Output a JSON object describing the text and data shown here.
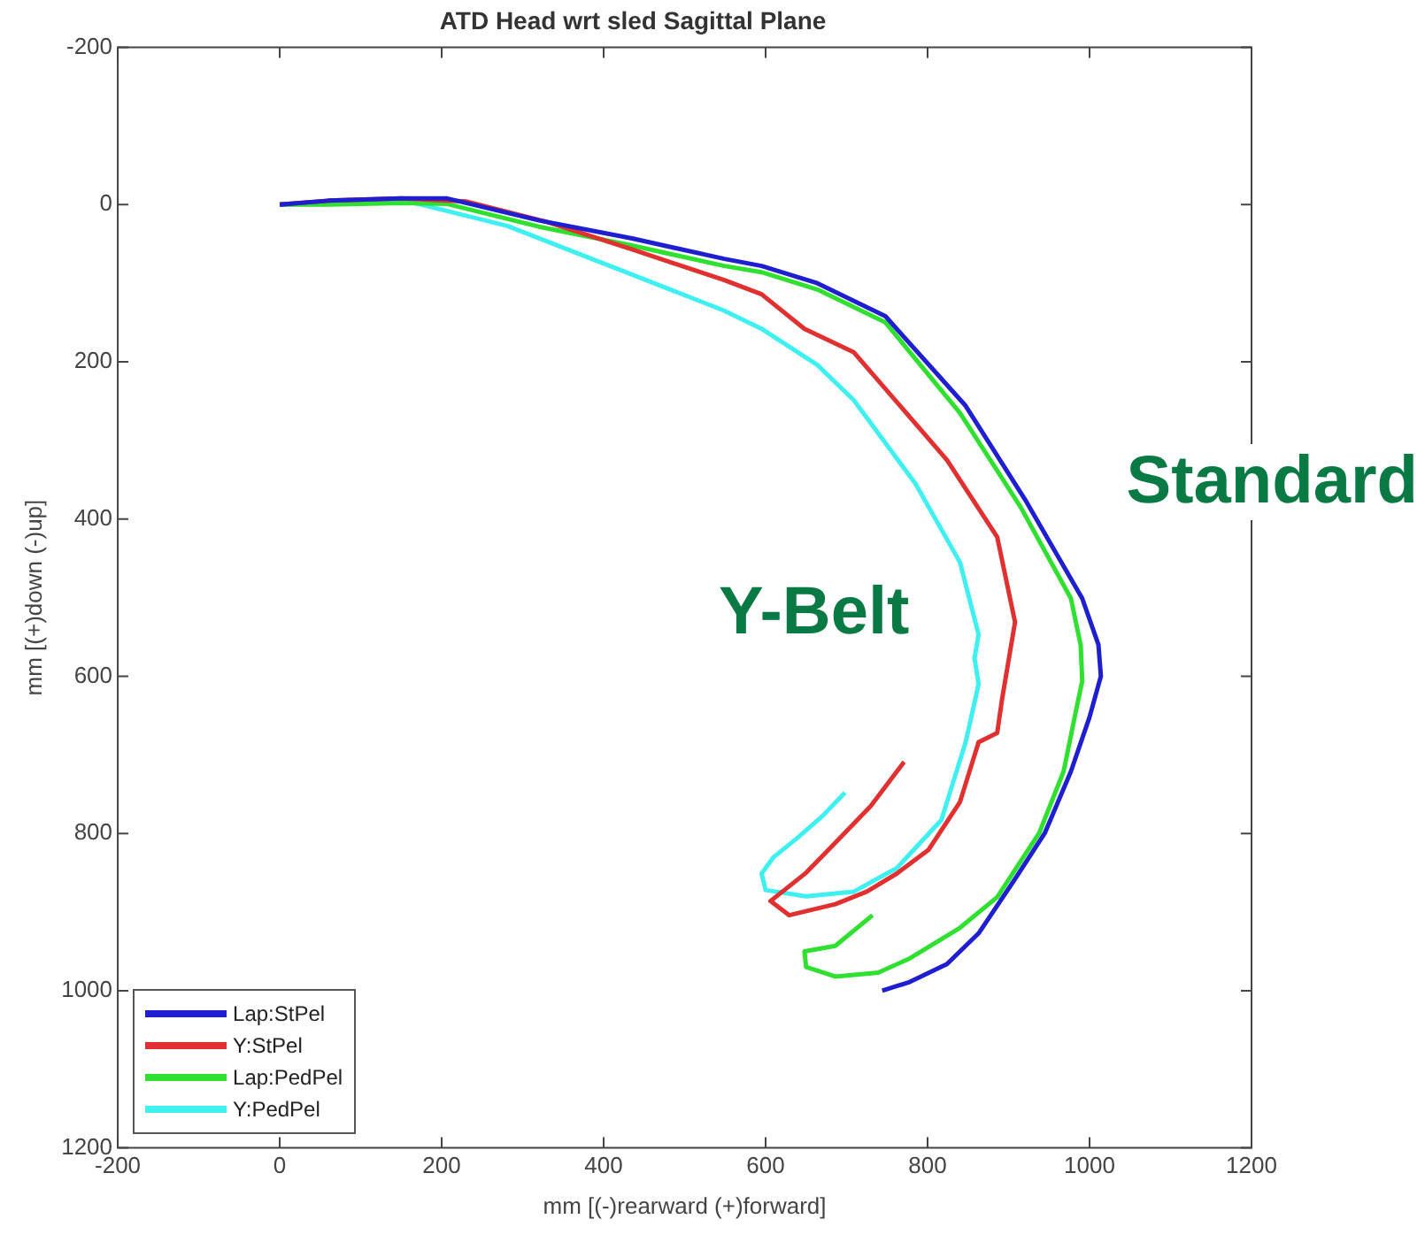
{
  "chart_data": {
    "type": "line",
    "title": "ATD Head wrt sled Sagittal Plane",
    "xlabel": "mm [(-)rearward (+)forward]",
    "ylabel": "mm [(+)down (-)up]",
    "xlim": [
      -200,
      1200
    ],
    "xticks": [
      -200,
      0,
      200,
      400,
      600,
      800,
      1000,
      1200
    ],
    "ylim": [
      1200,
      -200
    ],
    "yticks": [
      -200,
      0,
      200,
      400,
      600,
      800,
      1000,
      1200
    ],
    "grid": false,
    "legend": "bottom left",
    "marker": "none",
    "line_style": "solid",
    "annotations": [
      "Standard",
      "Y-Belt"
    ],
    "series": [
      {
        "name": "Lap:StPel",
        "color": "#1f1fd0",
        "x": [
          0,
          60,
          150,
          206,
          320,
          435,
          549,
          595,
          664,
          748,
          847,
          922,
          991,
          1011,
          1014,
          1000,
          977,
          945,
          908,
          863,
          824,
          778,
          744
        ],
        "values": [
          0,
          -5,
          -8,
          -8,
          20,
          43,
          69,
          78,
          100,
          142,
          256,
          378,
          501,
          560,
          600,
          652,
          721,
          799,
          858,
          927,
          966,
          989,
          1000
        ]
      },
      {
        "name": "Y:StPel",
        "color": "#e03030",
        "x": [
          0,
          60,
          150,
          230,
          330,
          435,
          549,
          595,
          648,
          709,
          824,
          886,
          908,
          892,
          886,
          863,
          840,
          801,
          762,
          725,
          686,
          629,
          606,
          650,
          686,
          730,
          771
        ],
        "values": [
          0,
          -5,
          -8,
          -4,
          22,
          57,
          96,
          114,
          158,
          188,
          325,
          423,
          531,
          629,
          672,
          684,
          760,
          821,
          851,
          874,
          890,
          904,
          886,
          850,
          812,
          765,
          709
        ]
      },
      {
        "name": "Lap:PedPel",
        "color": "#30e030",
        "x": [
          0,
          60,
          150,
          206,
          320,
          435,
          549,
          595,
          664,
          748,
          840,
          915,
          977,
          989,
          991,
          984,
          968,
          938,
          886,
          840,
          778,
          739,
          686,
          650,
          648,
          686,
          732
        ],
        "values": [
          0,
          0,
          -2,
          -1,
          28,
          52,
          78,
          86,
          108,
          150,
          265,
          385,
          501,
          560,
          606,
          640,
          721,
          799,
          881,
          920,
          959,
          977,
          982,
          970,
          950,
          943,
          904
        ]
      },
      {
        "name": "Y:PedPel",
        "color": "#40f0f0",
        "x": [
          0,
          80,
          167,
          281,
          435,
          549,
          595,
          664,
          709,
          785,
          840,
          863,
          858,
          863,
          847,
          817,
          762,
          709,
          650,
          600,
          595,
          610,
          640,
          670,
          698
        ],
        "values": [
          0,
          -2,
          -2,
          27,
          89,
          135,
          158,
          204,
          249,
          355,
          455,
          547,
          577,
          610,
          684,
          783,
          844,
          874,
          880,
          872,
          851,
          830,
          805,
          778,
          748
        ]
      }
    ]
  }
}
